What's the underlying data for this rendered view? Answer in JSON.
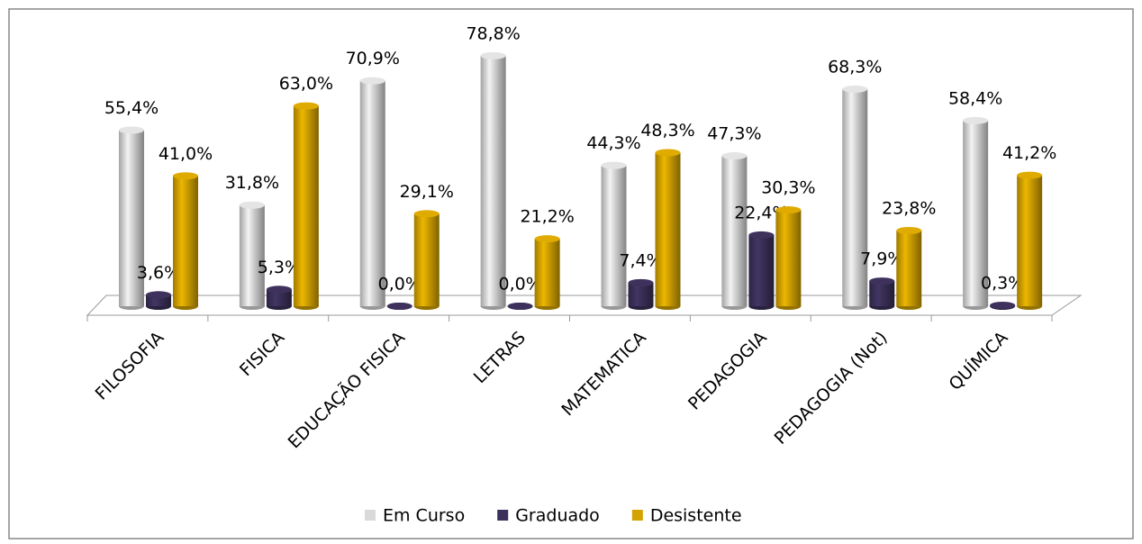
{
  "chart_data": {
    "type": "bar",
    "categories": [
      "FILOSOFIA",
      "FISICA",
      "EDUCAÇÃO FISICA",
      "LETRAS",
      "MATEMATICA",
      "PEDAGOGIA",
      "PEDAGOGIA (Not)",
      "QUÍMICA"
    ],
    "series": [
      {
        "name": "Em Curso",
        "color": "#d9d9d9",
        "values": [
          55.4,
          31.8,
          70.9,
          78.8,
          44.3,
          47.3,
          68.3,
          58.4
        ],
        "value_labels": [
          "55,4%",
          "31,8%",
          "70,9%",
          "78,8%",
          "44,3%",
          "47,3%",
          "68,3%",
          "58,4%"
        ]
      },
      {
        "name": "Graduado",
        "color": "#3b3059",
        "values": [
          3.6,
          5.3,
          0.0,
          0.0,
          7.4,
          22.4,
          7.9,
          0.3
        ],
        "value_labels": [
          "3,6%",
          "5,3%",
          "0,0%",
          "0,0%",
          "7,4%",
          "22,4%",
          "7,9%",
          "0,3%"
        ]
      },
      {
        "name": "Desistente",
        "color": "#d4a300",
        "values": [
          41.0,
          63.0,
          29.1,
          21.2,
          48.3,
          30.3,
          23.8,
          41.2
        ],
        "value_labels": [
          "41,0%",
          "63,0%",
          "29,1%",
          "21,2%",
          "48,3%",
          "30,3%",
          "23,8%",
          "41,2%"
        ]
      }
    ],
    "legend": "bottom"
  }
}
